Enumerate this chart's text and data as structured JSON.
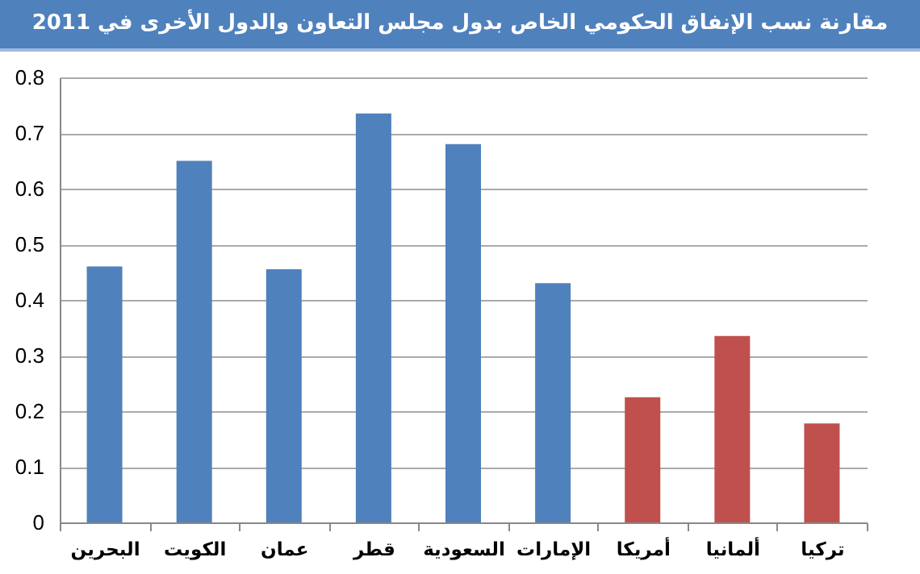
{
  "chart_data": {
    "type": "bar",
    "title": "مقارنة نسب الإنفاق الحكومي الخاص بدول مجلس التعاون والدول الأخرى في 2011",
    "categories": [
      "البحرين",
      "الكويت",
      "عمان",
      "قطر",
      "السعودية",
      "الإمارات",
      "أمريكا",
      "ألمانيا",
      "تركيا"
    ],
    "values": [
      0.46,
      0.65,
      0.455,
      0.735,
      0.68,
      0.43,
      0.225,
      0.335,
      0.178
    ],
    "colors": [
      "#4f81bd",
      "#4f81bd",
      "#4f81bd",
      "#4f81bd",
      "#4f81bd",
      "#4f81bd",
      "#c0504d",
      "#c0504d",
      "#c0504d"
    ],
    "ylim": [
      0,
      0.8
    ],
    "yticks": [
      0,
      0.1,
      0.2,
      0.3,
      0.4,
      0.5,
      0.6,
      0.7,
      0.8
    ],
    "grid": "y"
  }
}
